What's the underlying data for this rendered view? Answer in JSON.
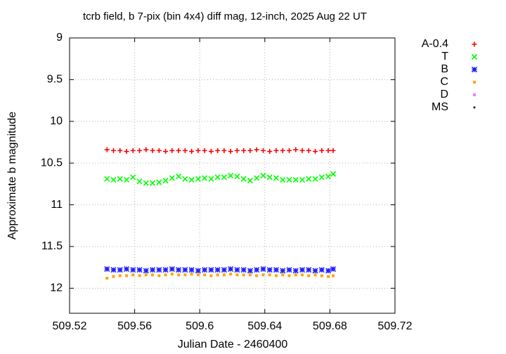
{
  "chart_data": {
    "type": "scatter",
    "title": "tcrb field, b 7-pix (bin 4x4) diff mag, 12-inch, 2025 Aug 22 UT",
    "x_label": "Julian Date - 2460400",
    "y_label": "Approximate b magnitude",
    "xlim": [
      509.52,
      509.72
    ],
    "xticks": [
      509.52,
      509.56,
      509.6,
      509.64,
      509.68,
      509.72
    ],
    "ylim": [
      12.3,
      9
    ],
    "yticks": [
      9,
      9.5,
      10,
      10.5,
      11,
      11.5,
      12
    ],
    "y_reversed": true,
    "grid": true,
    "legend": "right",
    "x": [
      509.543,
      509.547,
      509.551,
      509.555,
      509.559,
      509.563,
      509.567,
      509.571,
      509.575,
      509.579,
      509.583,
      509.587,
      509.591,
      509.595,
      509.599,
      509.603,
      509.607,
      509.611,
      509.615,
      509.619,
      509.623,
      509.627,
      509.631,
      509.635,
      509.639,
      509.643,
      509.647,
      509.651,
      509.655,
      509.659,
      509.663,
      509.667,
      509.671,
      509.675,
      509.679,
      509.682
    ],
    "series": [
      {
        "name": "A-0.4",
        "color": "#ff0000",
        "marker": "plus",
        "values": [
          10.34,
          10.35,
          10.35,
          10.36,
          10.35,
          10.35,
          10.34,
          10.35,
          10.35,
          10.36,
          10.35,
          10.35,
          10.35,
          10.36,
          10.35,
          10.35,
          10.36,
          10.35,
          10.35,
          10.36,
          10.35,
          10.35,
          10.35,
          10.34,
          10.35,
          10.36,
          10.35,
          10.35,
          10.35,
          10.34,
          10.35,
          10.35,
          10.36,
          10.35,
          10.35,
          10.35
        ]
      },
      {
        "name": "T",
        "color": "#00ff00",
        "marker": "cross",
        "values": [
          10.69,
          10.7,
          10.69,
          10.7,
          10.67,
          10.72,
          10.74,
          10.74,
          10.73,
          10.71,
          10.68,
          10.66,
          10.69,
          10.7,
          10.69,
          10.68,
          10.69,
          10.67,
          10.67,
          10.65,
          10.66,
          10.69,
          10.71,
          10.68,
          10.65,
          10.67,
          10.68,
          10.7,
          10.7,
          10.7,
          10.7,
          10.69,
          10.69,
          10.67,
          10.66,
          10.63
        ]
      },
      {
        "name": "B",
        "color": "#2020ff",
        "marker": "star",
        "values": [
          11.77,
          11.78,
          11.78,
          11.77,
          11.78,
          11.78,
          11.79,
          11.78,
          11.78,
          11.78,
          11.77,
          11.78,
          11.78,
          11.78,
          11.79,
          11.78,
          11.78,
          11.78,
          11.78,
          11.77,
          11.78,
          11.78,
          11.79,
          11.78,
          11.77,
          11.78,
          11.78,
          11.79,
          11.78,
          11.79,
          11.78,
          11.78,
          11.79,
          11.78,
          11.79,
          11.77
        ]
      },
      {
        "name": "C",
        "color": "#ffa500",
        "marker": "square",
        "values": [
          11.88,
          11.86,
          11.85,
          11.85,
          11.84,
          11.85,
          11.84,
          11.84,
          11.85,
          11.84,
          11.83,
          11.84,
          11.84,
          11.83,
          11.84,
          11.84,
          11.85,
          11.84,
          11.84,
          11.83,
          11.84,
          11.84,
          11.84,
          11.85,
          11.84,
          11.84,
          11.85,
          11.84,
          11.85,
          11.84,
          11.84,
          11.85,
          11.84,
          11.85,
          11.86,
          11.85
        ]
      },
      {
        "name": "D",
        "color": "#ee82ee",
        "marker": "square",
        "values": [
          null,
          null,
          null,
          null,
          null,
          null,
          null,
          null,
          null,
          null,
          null,
          null,
          null,
          null,
          null,
          null,
          null,
          null,
          null,
          null,
          null,
          null,
          null,
          null,
          null,
          null,
          null,
          null,
          null,
          null,
          null,
          null,
          null,
          null,
          null,
          null
        ]
      },
      {
        "name": "MS",
        "color": "#000000",
        "marker": "dot",
        "values": [
          null,
          null,
          null,
          null,
          null,
          null,
          null,
          null,
          null,
          null,
          null,
          null,
          null,
          null,
          null,
          null,
          null,
          null,
          null,
          null,
          null,
          null,
          null,
          null,
          null,
          null,
          null,
          null,
          null,
          null,
          null,
          null,
          null,
          null,
          null,
          null
        ]
      }
    ]
  }
}
